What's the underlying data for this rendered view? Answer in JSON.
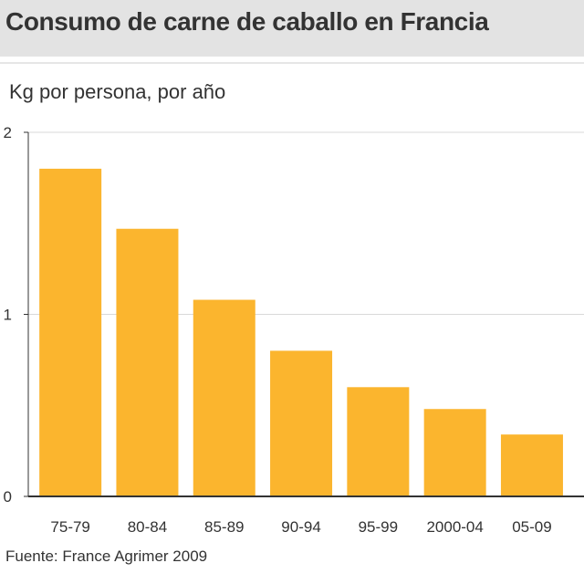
{
  "header": {
    "title": "Consumo de carne de caballo en Francia",
    "subtitle": "Kg por persona, por año"
  },
  "footer": {
    "source": "Fuente: France Agrimer 2009"
  },
  "colors": {
    "bar": "#fbb52e",
    "header_band": "#e3e3e3",
    "gridline": "#d9d9d9",
    "axis": "#333333",
    "text": "#333333"
  },
  "chart_data": {
    "type": "bar",
    "title": "Consumo de carne de caballo en Francia",
    "subtitle": "Kg por persona, por año",
    "categories": [
      "75-79",
      "80-84",
      "85-89",
      "90-94",
      "95-99",
      "2000-04",
      "05-09"
    ],
    "values": [
      1.8,
      1.47,
      1.08,
      0.8,
      0.6,
      0.48,
      0.34
    ],
    "ylim": [
      0,
      2
    ],
    "yticks": [
      0,
      1,
      2
    ],
    "ytick_labels": [
      "0",
      "1",
      "2"
    ],
    "xlabel": "",
    "ylabel": "",
    "grid": true
  }
}
